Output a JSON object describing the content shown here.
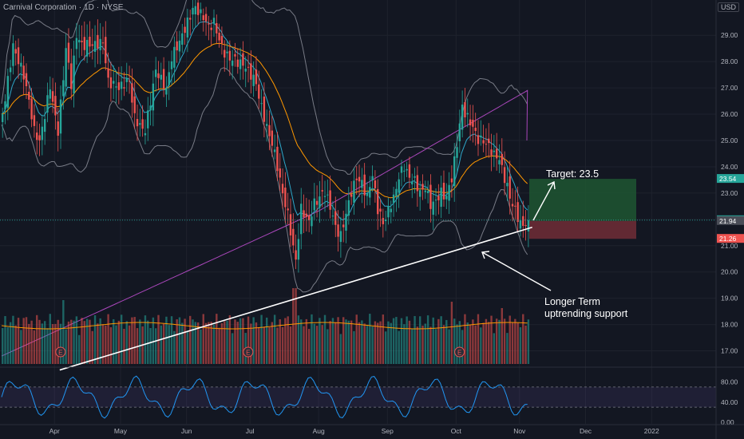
{
  "header": {
    "symbol_name": "Carnival Corporation",
    "interval": "1D",
    "exchange": "NYSE",
    "currency": "USD"
  },
  "colors": {
    "background": "#131722",
    "grid": "#1e222d",
    "up": "#26a69a",
    "down": "#ef5350",
    "bollinger": "#787b86",
    "ema_fast": "#2ea7c9",
    "ema_mid": "#ff9800",
    "ma_slow": "#ab47bc",
    "rsi": "#2196f3",
    "trendline": "#ffffff",
    "target_zone": "#1e5631",
    "stop_zone": "#6b2b35"
  },
  "chart_data": {
    "type": "candlestick",
    "x_tick_labels": [
      "Apr",
      "May",
      "Jun",
      "Jul",
      "Aug",
      "Sep",
      "Oct",
      "Nov",
      "Dec",
      "2022"
    ],
    "y_tick_labels": [
      "17.00",
      "18.00",
      "19.00",
      "20.00",
      "21.00",
      "22.00",
      "23.00",
      "24.00",
      "25.00",
      "26.00",
      "27.00",
      "28.00",
      "29.00"
    ],
    "ylim": [
      16.5,
      30.1
    ],
    "price_labels": [
      {
        "value": 23.54,
        "text": "23.54",
        "color": "#26a69a"
      },
      {
        "value": 21.97,
        "text": "21.97",
        "color": "#26a69a"
      },
      {
        "value": 21.94,
        "text": "21.94",
        "color": "#4a4d57"
      },
      {
        "value": 21.26,
        "text": "21.26",
        "color": "#ef5350"
      }
    ],
    "last_price": 21.97,
    "position": {
      "target": 23.54,
      "entry": 21.94,
      "stop": 21.26
    },
    "annotations": [
      {
        "id": "target",
        "text": "Target: 23.5"
      },
      {
        "id": "support",
        "lines": [
          "Longer Term",
          "uptrending support"
        ]
      }
    ],
    "trendline": {
      "start": {
        "date": "2021-04-01",
        "value": 13.2
      },
      "end": {
        "date": "2021-10-29",
        "value": 21.7
      }
    },
    "earnings_markers": [
      "E",
      "E",
      "E"
    ],
    "rsi": {
      "y_tick_labels": [
        "0.00",
        "40.00",
        "80.00"
      ],
      "upper_band": 70,
      "lower_band": 30
    },
    "series_shape": {
      "close": [
        [
          0,
          26.0
        ],
        [
          4,
          28.8
        ],
        [
          8,
          27.5
        ],
        [
          12,
          25.2
        ],
        [
          14,
          24.8
        ],
        [
          18,
          27.2
        ],
        [
          21,
          25.5
        ],
        [
          24,
          28.5
        ],
        [
          26,
          27.0
        ],
        [
          28,
          28.8
        ],
        [
          30,
          28.5
        ],
        [
          34,
          28.8
        ],
        [
          38,
          28.9
        ],
        [
          40,
          27.2
        ],
        [
          44,
          26.8
        ],
        [
          48,
          27.3
        ],
        [
          50,
          26.0
        ],
        [
          54,
          25.5
        ],
        [
          58,
          27.5
        ],
        [
          62,
          26.8
        ],
        [
          64,
          28.2
        ],
        [
          68,
          29.2
        ],
        [
          72,
          30.0
        ],
        [
          74,
          29.8
        ],
        [
          78,
          29.2
        ],
        [
          80,
          29.5
        ],
        [
          84,
          28.5
        ],
        [
          88,
          28.0
        ],
        [
          92,
          27.6
        ],
        [
          96,
          27.2
        ],
        [
          98,
          26.4
        ],
        [
          100,
          25.7
        ],
        [
          102,
          25.0
        ],
        [
          104,
          24.0
        ],
        [
          106,
          22.8
        ],
        [
          108,
          22.0
        ],
        [
          110,
          20.8
        ],
        [
          111,
          20.4
        ],
        [
          113,
          22.5
        ],
        [
          116,
          22.1
        ],
        [
          118,
          22.7
        ],
        [
          122,
          22.9
        ],
        [
          124,
          22.3
        ],
        [
          126,
          21.6
        ],
        [
          128,
          21.4
        ],
        [
          130,
          22.4
        ],
        [
          132,
          23.2
        ],
        [
          134,
          23.7
        ],
        [
          136,
          23.3
        ],
        [
          138,
          22.7
        ],
        [
          140,
          23.5
        ],
        [
          142,
          22.3
        ],
        [
          144,
          21.9
        ],
        [
          146,
          22.5
        ],
        [
          148,
          23.0
        ],
        [
          150,
          23.7
        ],
        [
          152,
          24.0
        ],
        [
          154,
          23.4
        ],
        [
          156,
          23.3
        ],
        [
          158,
          22.9
        ],
        [
          160,
          23.3
        ],
        [
          162,
          22.7
        ],
        [
          164,
          22.9
        ],
        [
          166,
          23.1
        ],
        [
          168,
          22.8
        ],
        [
          170,
          23.4
        ],
        [
          172,
          24.7
        ],
        [
          174,
          26.2
        ],
        [
          176,
          25.9
        ],
        [
          178,
          25.7
        ],
        [
          180,
          25.2
        ],
        [
          182,
          25.1
        ],
        [
          184,
          24.7
        ],
        [
          186,
          24.3
        ],
        [
          188,
          24.1
        ],
        [
          190,
          23.5
        ],
        [
          192,
          22.9
        ],
        [
          194,
          22.5
        ],
        [
          196,
          22.0
        ],
        [
          198,
          21.9
        ],
        [
          199,
          21.97
        ]
      ]
    }
  }
}
